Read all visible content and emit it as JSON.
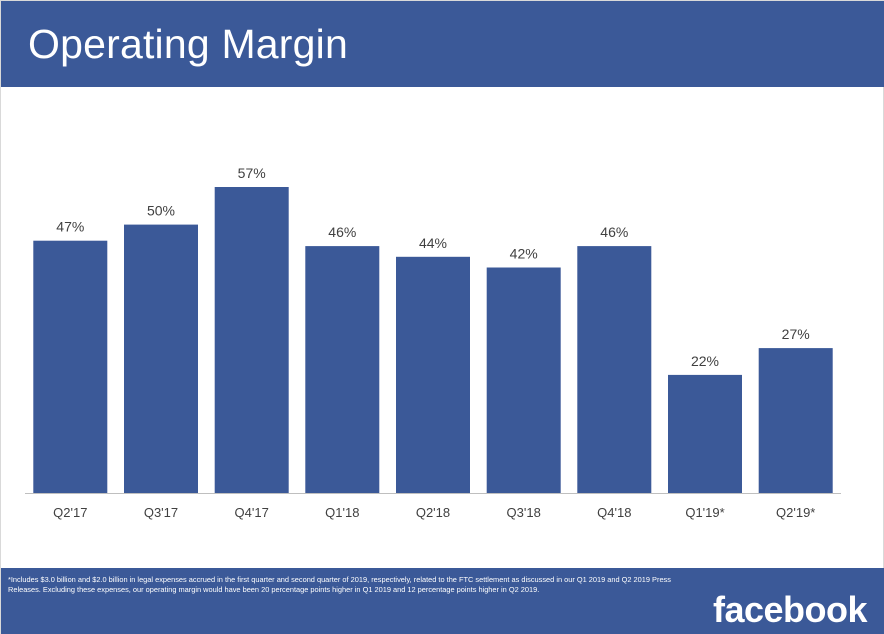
{
  "title": "Operating Margin",
  "footnote": "*Includes $3.0 billion and $2.0 billion in legal expenses accrued in the first quarter and second quarter of 2019, respectively, related to the FTC settlement as discussed in our Q1 2019 and Q2 2019 Press Releases. Excluding these expenses, our operating margin would have been 20 percentage points higher in Q1 2019 and 12 percentage points higher in Q2 2019.",
  "logo_text": "facebook",
  "colors": {
    "brand": "#3b5998",
    "bar": "#3b5998",
    "label": "#404040"
  },
  "chart_data": {
    "type": "bar",
    "title": "Operating Margin",
    "categories": [
      "Q2'17",
      "Q3'17",
      "Q4'17",
      "Q1'18",
      "Q2'18",
      "Q3'18",
      "Q4'18",
      "Q1'19*",
      "Q2'19*"
    ],
    "values": [
      47,
      50,
      57,
      46,
      44,
      42,
      46,
      22,
      27
    ],
    "data_labels": [
      "47%",
      "50%",
      "57%",
      "46%",
      "44%",
      "42%",
      "46%",
      "22%",
      "27%"
    ],
    "unit": "%",
    "ylim": [
      0,
      57
    ],
    "grid": false,
    "legend": "none"
  }
}
